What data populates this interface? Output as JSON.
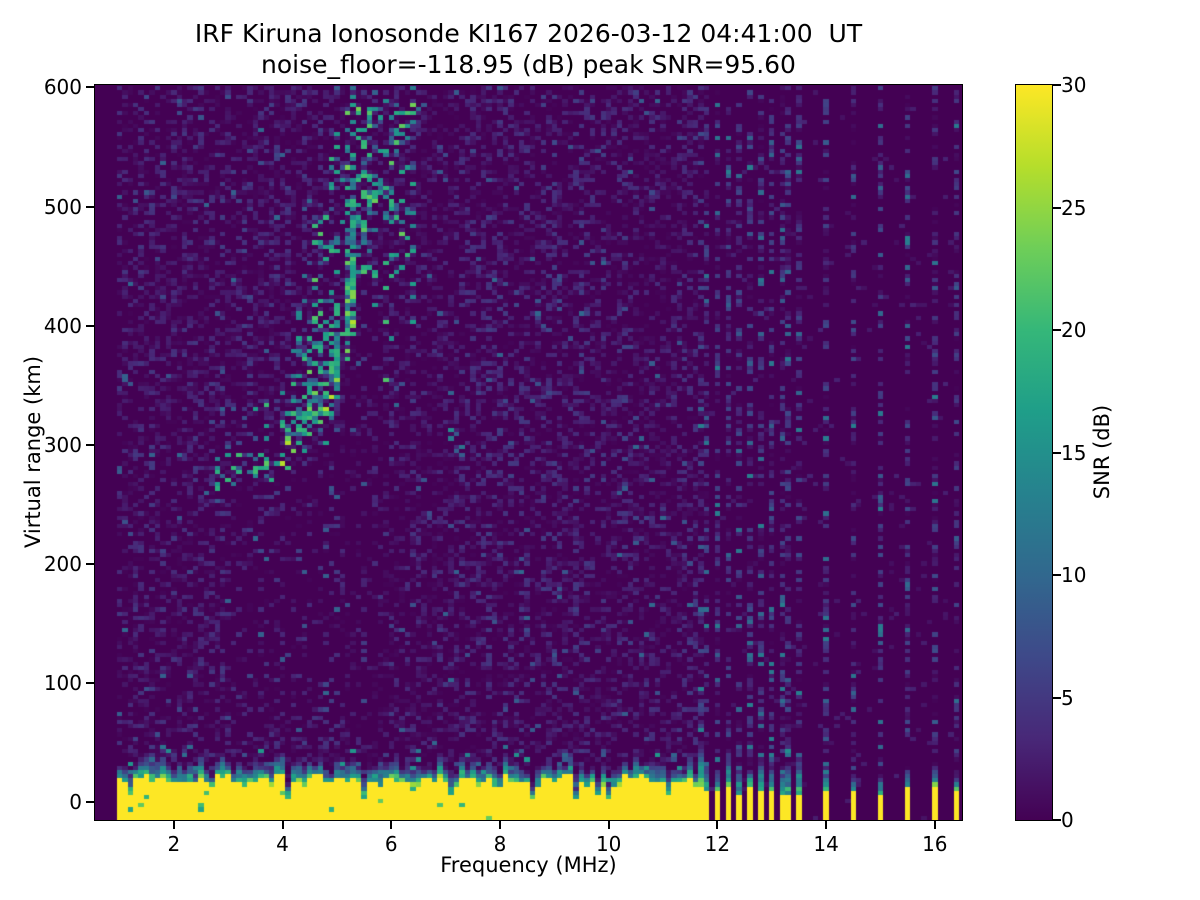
{
  "chart_data": {
    "type": "heatmap",
    "title_line1": "IRF Kiruna Ionosonde KI167 2026-03-12 04:41:00  UT",
    "title_line2": "noise_floor=-118.95 (dB) peak SNR=95.60",
    "xlabel": "Frequency (MHz)",
    "ylabel": "Virtual range (km)",
    "colorbar_label": "SNR (dB)",
    "noise_floor_db": -118.95,
    "peak_snr_db": 95.6,
    "xlim": [
      0.55,
      16.5
    ],
    "ylim": [
      -15,
      602
    ],
    "clim": [
      0,
      30
    ],
    "x_ticks": [
      2,
      4,
      6,
      8,
      10,
      12,
      14,
      16
    ],
    "y_ticks": [
      0,
      100,
      200,
      300,
      400,
      500,
      600
    ],
    "colorbar_ticks": [
      0,
      5,
      10,
      15,
      20,
      25,
      30
    ],
    "colormap": "viridis",
    "colormap_stops": [
      "#440154",
      "#482878",
      "#3e4989",
      "#31688e",
      "#26828e",
      "#1f9e89",
      "#35b779",
      "#6ece58",
      "#b5de2b",
      "#fde725"
    ],
    "features": {
      "ground_clutter_band": {
        "f_range_mhz": [
          1.0,
          11.62
        ],
        "top_km_range": [
          13,
          23
        ],
        "snr_db": 30
      },
      "echo_trace": {
        "points_mhz_km": [
          [
            2.75,
            265
          ],
          [
            3.1,
            272
          ],
          [
            3.5,
            279
          ],
          [
            3.9,
            290
          ],
          [
            4.3,
            308
          ],
          [
            4.7,
            335
          ],
          [
            5.0,
            372
          ],
          [
            5.3,
            425
          ],
          [
            5.6,
            505
          ]
        ],
        "peak_cell_db_range": [
          8,
          28
        ]
      },
      "isolated_echo": {
        "f": 7.2,
        "h_km": 304
      },
      "interference_comb": {
        "f_start": 11.75,
        "spacing_mhz": 0.215,
        "count": 8
      },
      "interference_lines_mhz": [
        13.5,
        14.0,
        14.5,
        15.0,
        15.5,
        16.0,
        16.4
      ]
    },
    "render": {
      "seed": 1167042,
      "f_min": 1.0,
      "f_max": 16.4,
      "f_step": 0.1,
      "h_min": -15,
      "h_max": 601,
      "h_step": 3.5,
      "noise_p": 0.52,
      "noise_amp": 4.2,
      "bright_noise_p": 0.022,
      "quiet_zone_f": 11.65,
      "stripe_noise_p": 0.5,
      "stripe_amp": 7,
      "notch_p": 0.08,
      "trace_spread_km": [
        8,
        52
      ],
      "trace_tail_f": 6.4
    }
  }
}
